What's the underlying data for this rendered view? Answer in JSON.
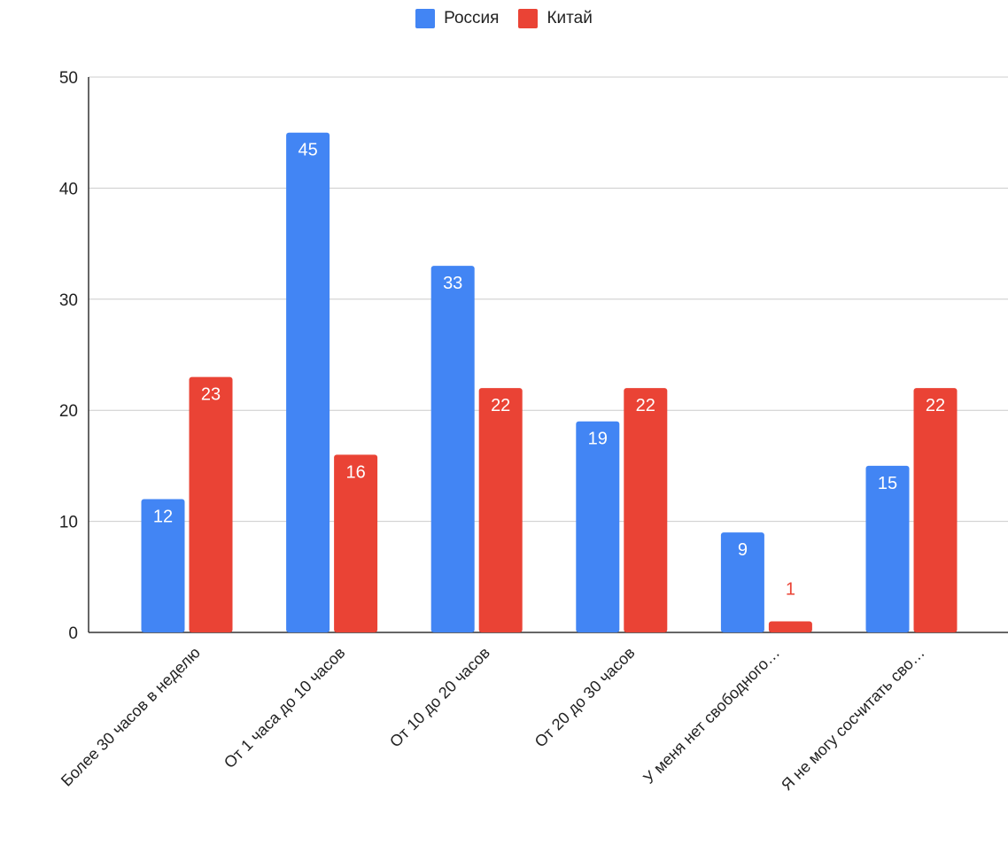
{
  "chart_data": {
    "type": "bar",
    "categories": [
      "Более 30 часов в неделю",
      "От 1 часа до 10 часов",
      "От 10 до 20 часов",
      "От 20 до 30 часов",
      "У меня нет свободного…",
      "Я не могу сосчитать сво…"
    ],
    "series": [
      {
        "name": "Россия",
        "color": "#4285f4",
        "values": [
          12,
          45,
          33,
          19,
          9,
          15
        ]
      },
      {
        "name": "Китай",
        "color": "#ea4335",
        "values": [
          23,
          16,
          22,
          22,
          1,
          22
        ]
      }
    ],
    "ylim": [
      0,
      50
    ],
    "yticks": [
      "0",
      "10",
      "20",
      "30",
      "40",
      "50"
    ],
    "grid": true,
    "legend_position": "top-center"
  }
}
